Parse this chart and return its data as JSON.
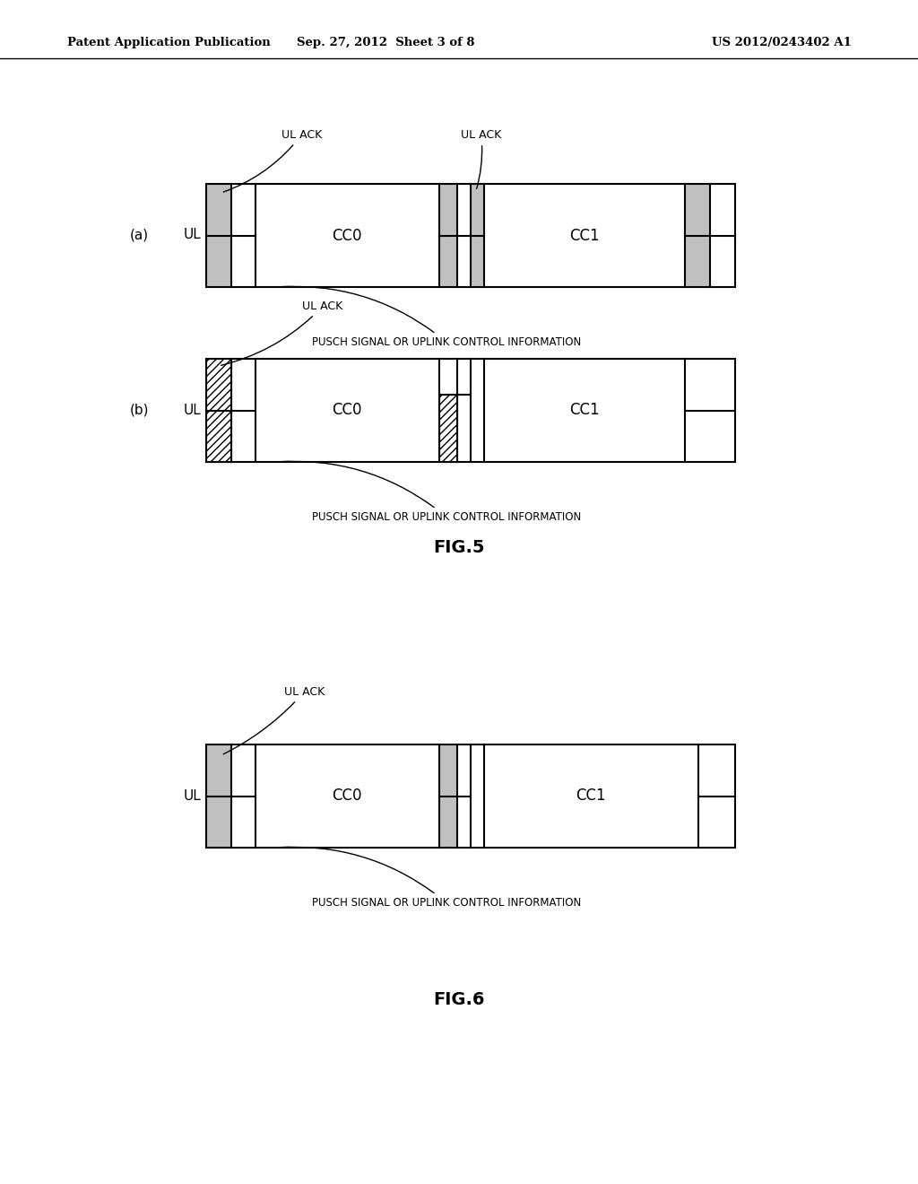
{
  "bg_color": "#ffffff",
  "header_left": "Patent Application Publication",
  "header_mid": "Sep. 27, 2012  Sheet 3 of 8",
  "header_right": "US 2012/0243402 A1",
  "fig5_label": "FIG.5",
  "fig6_label": "FIG.6",
  "pusch_label": "PUSCH SIGNAL OR UPLINK CONTROL INFORMATION",
  "ul_ack_label": "UL ACK",
  "ul_label": "UL",
  "cc0_label": "CC0",
  "cc1_label": "CC1"
}
